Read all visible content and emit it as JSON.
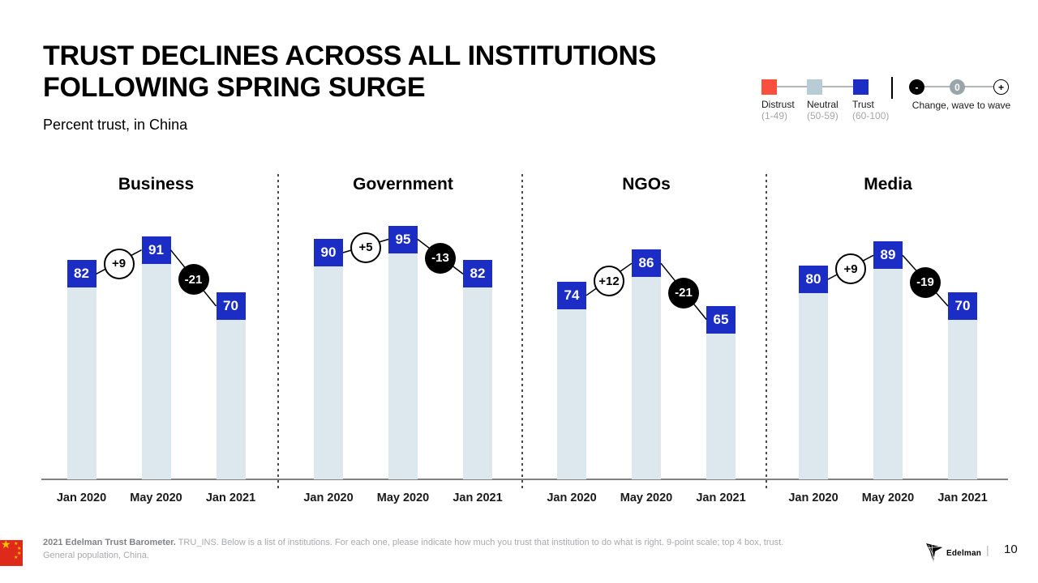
{
  "page": {
    "title_line1": "TRUST DECLINES ACROSS ALL INSTITUTIONS",
    "title_line2": "FOLLOWING SPRING SURGE",
    "subtitle": "Percent trust, in China"
  },
  "legend": {
    "scale": [
      {
        "label": "Distrust",
        "range": "(1-49)",
        "color": "#fa4f3c"
      },
      {
        "label": "Neutral",
        "range": "(50-59)",
        "color": "#b8ccd6"
      },
      {
        "label": "Trust",
        "range": "(60-100)",
        "color": "#1b2dc4"
      }
    ],
    "change": {
      "label": "Change, wave to wave",
      "markers": [
        {
          "symbol": "-",
          "fill": "#000000",
          "text_color": "#ffffff"
        },
        {
          "symbol": "0",
          "fill": "#9aa4ab",
          "text_color": "#ffffff"
        },
        {
          "symbol": "+",
          "fill": "#ffffff",
          "text_color": "#000000"
        }
      ]
    }
  },
  "chart_data": {
    "type": "bar",
    "title": "TRUST DECLINES ACROSS ALL INSTITUTIONS FOLLOWING SPRING SURGE",
    "subtitle": "Percent trust, in China",
    "categories": [
      "Jan 2020",
      "May 2020",
      "Jan 2021"
    ],
    "ylim": [
      0,
      100
    ],
    "grid": false,
    "legend_position": "top-right",
    "bar_color": "#dce7ee",
    "cap_color": "#1b2dc4",
    "panels": [
      {
        "name": "Business",
        "values": [
          82,
          91,
          70
        ],
        "changes": [
          "+9",
          "-21"
        ]
      },
      {
        "name": "Government",
        "values": [
          90,
          95,
          82
        ],
        "changes": [
          "+5",
          "-13"
        ]
      },
      {
        "name": "NGOs",
        "values": [
          74,
          86,
          65
        ],
        "changes": [
          "+12",
          "-21"
        ]
      },
      {
        "name": "Media",
        "values": [
          80,
          89,
          70
        ],
        "changes": [
          "+9",
          "-19"
        ]
      }
    ]
  },
  "footer": {
    "source_bold": "2021 Edelman Trust Barometer.",
    "source_rest": " TRU_INS. Below is a list of institutions. For each one, please indicate how much you trust that institution to do what is right. 9-point scale; top 4 box, trust.",
    "source_line2": "General population, China.",
    "flag_icon": "china-flag-icon",
    "brand_icon": "edelman-logo-icon",
    "brand": "Edelman",
    "separator": "|",
    "page_number": "10"
  }
}
